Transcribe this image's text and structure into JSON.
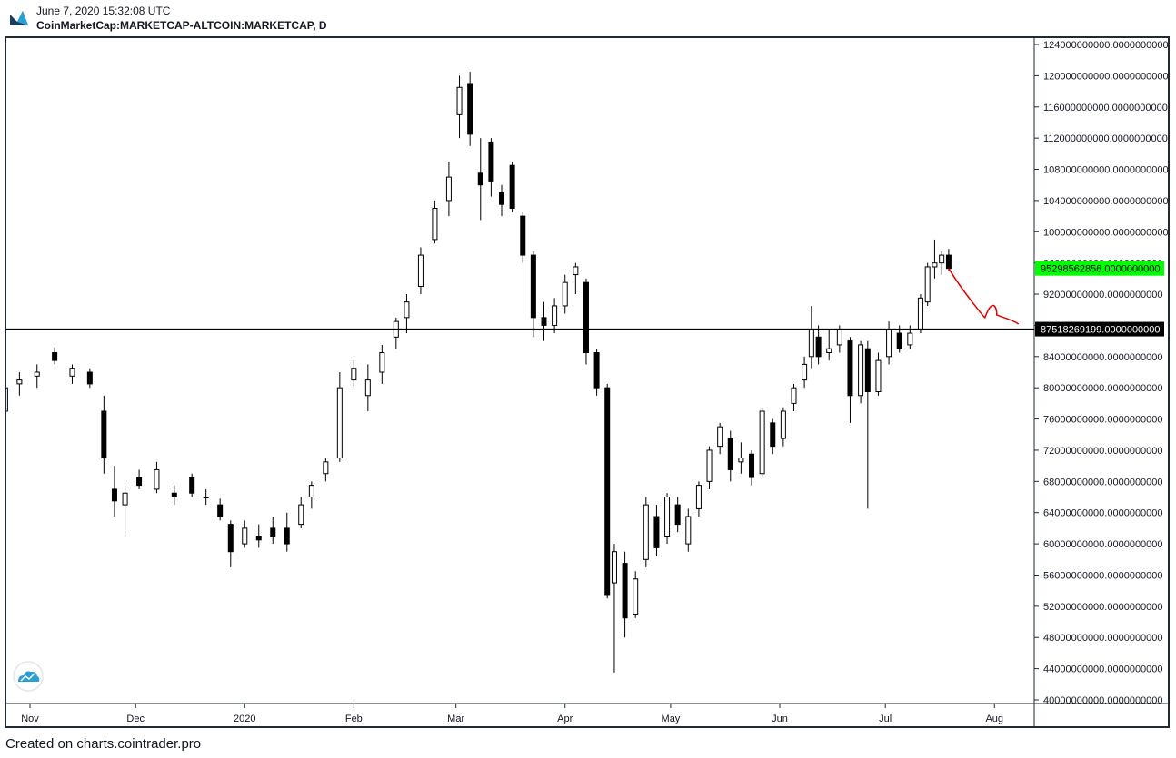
{
  "header": {
    "datetime": "June 7, 2020 15:32:08 UTC",
    "symbol": "CoinMarketCap:MARKETCAP-ALTCOIN:MARKETCAP, D"
  },
  "footer": {
    "text": "Created on charts.cointrader.pro"
  },
  "logo": {
    "icon": "tradingview-logo-icon"
  },
  "watermark": {
    "icon": "cloud-chart-icon"
  },
  "colors": {
    "candles": "#000000",
    "current_price_bg": "#00ff00",
    "level_label_bg": "#000000",
    "annotation": "#e00000",
    "axis_text": "#131722"
  },
  "chart_data": {
    "type": "candlestick",
    "interval": "D",
    "y_ticks": [
      "124000000000.0000000000",
      "120000000000.0000000000",
      "116000000000.0000000000",
      "112000000000.0000000000",
      "108000000000.0000000000",
      "104000000000.0000000000",
      "100000000000.0000000000",
      "96000000000.0000000000",
      "92000000000.0000000000",
      "88000000000.0000000000",
      "84000000000.0000000000",
      "80000000000.0000000000",
      "76000000000.0000000000",
      "72000000000.0000000000",
      "68000000000.0000000000",
      "64000000000.0000000000",
      "60000000000.0000000000",
      "56000000000.0000000000",
      "52000000000.0000000000",
      "48000000000.0000000000",
      "44000000000.0000000000",
      "40000000000.0000000000"
    ],
    "ylim": [
      40000000000,
      125000000000
    ],
    "x_ticks": [
      "Nov",
      "Dec",
      "2020",
      "Feb",
      "Mar",
      "Apr",
      "May",
      "Jun",
      "Jul",
      "Aug"
    ],
    "x_start": "2019-10-25",
    "x_end": "2020-08-31",
    "current_price": {
      "value": 95298562856,
      "label": "95298562856.0000000000"
    },
    "horizontal_level": {
      "value": 87518269199,
      "label": "87518269199.0000000000"
    },
    "candles": [
      {
        "t": "2019-10-25",
        "o": 77000000000,
        "h": 82000000000,
        "l": 76000000000,
        "c": 80000000000
      },
      {
        "t": "2019-10-29",
        "o": 80500000000,
        "h": 82000000000,
        "l": 79000000000,
        "c": 81000000000
      },
      {
        "t": "2019-11-03",
        "o": 81500000000,
        "h": 83000000000,
        "l": 80000000000,
        "c": 82000000000
      },
      {
        "t": "2019-11-08",
        "o": 84500000000,
        "h": 85200000000,
        "l": 83000000000,
        "c": 83500000000
      },
      {
        "t": "2019-11-13",
        "o": 81500000000,
        "h": 83000000000,
        "l": 80500000000,
        "c": 82500000000
      },
      {
        "t": "2019-11-18",
        "o": 82000000000,
        "h": 82500000000,
        "l": 80000000000,
        "c": 80500000000
      },
      {
        "t": "2019-11-22",
        "o": 77000000000,
        "h": 79000000000,
        "l": 69000000000,
        "c": 71000000000
      },
      {
        "t": "2019-11-25",
        "o": 67000000000,
        "h": 70000000000,
        "l": 63500000000,
        "c": 65500000000
      },
      {
        "t": "2019-11-28",
        "o": 65000000000,
        "h": 67500000000,
        "l": 61000000000,
        "c": 66500000000
      },
      {
        "t": "2019-12-02",
        "o": 68500000000,
        "h": 69500000000,
        "l": 67000000000,
        "c": 67500000000
      },
      {
        "t": "2019-12-07",
        "o": 67000000000,
        "h": 70500000000,
        "l": 66500000000,
        "c": 69500000000
      },
      {
        "t": "2019-12-12",
        "o": 66500000000,
        "h": 67500000000,
        "l": 65000000000,
        "c": 66000000000
      },
      {
        "t": "2019-12-17",
        "o": 68500000000,
        "h": 69000000000,
        "l": 66000000000,
        "c": 66500000000
      },
      {
        "t": "2019-12-21",
        "o": 66000000000,
        "h": 67000000000,
        "l": 65000000000,
        "c": 66000000000
      },
      {
        "t": "2019-12-25",
        "o": 65000000000,
        "h": 65800000000,
        "l": 63000000000,
        "c": 63500000000
      },
      {
        "t": "2019-12-28",
        "o": 62500000000,
        "h": 63000000000,
        "l": 57000000000,
        "c": 59000000000
      },
      {
        "t": "2020-01-01",
        "o": 60000000000,
        "h": 63000000000,
        "l": 59500000000,
        "c": 62000000000
      },
      {
        "t": "2020-01-05",
        "o": 61000000000,
        "h": 62500000000,
        "l": 59500000000,
        "c": 60500000000
      },
      {
        "t": "2020-01-09",
        "o": 62000000000,
        "h": 63500000000,
        "l": 60000000000,
        "c": 61000000000
      },
      {
        "t": "2020-01-13",
        "o": 62000000000,
        "h": 64000000000,
        "l": 59000000000,
        "c": 60000000000
      },
      {
        "t": "2020-01-17",
        "o": 62500000000,
        "h": 66000000000,
        "l": 62000000000,
        "c": 65000000000
      },
      {
        "t": "2020-01-20",
        "o": 66000000000,
        "h": 68000000000,
        "l": 64500000000,
        "c": 67500000000
      },
      {
        "t": "2020-01-24",
        "o": 69000000000,
        "h": 71000000000,
        "l": 68000000000,
        "c": 70500000000
      },
      {
        "t": "2020-01-28",
        "o": 71000000000,
        "h": 82000000000,
        "l": 70500000000,
        "c": 80000000000
      },
      {
        "t": "2020-02-01",
        "o": 81000000000,
        "h": 83500000000,
        "l": 80000000000,
        "c": 82500000000
      },
      {
        "t": "2020-02-05",
        "o": 79000000000,
        "h": 83000000000,
        "l": 77000000000,
        "c": 81000000000
      },
      {
        "t": "2020-02-09",
        "o": 82000000000,
        "h": 85500000000,
        "l": 80500000000,
        "c": 84500000000
      },
      {
        "t": "2020-02-13",
        "o": 86500000000,
        "h": 89000000000,
        "l": 85000000000,
        "c": 88500000000
      },
      {
        "t": "2020-02-16",
        "o": 89000000000,
        "h": 92000000000,
        "l": 87000000000,
        "c": 91000000000
      },
      {
        "t": "2020-02-20",
        "o": 93000000000,
        "h": 98000000000,
        "l": 92000000000,
        "c": 97000000000
      },
      {
        "t": "2020-02-24",
        "o": 99000000000,
        "h": 104000000000,
        "l": 98500000000,
        "c": 103000000000
      },
      {
        "t": "2020-02-28",
        "o": 104000000000,
        "h": 109000000000,
        "l": 102000000000,
        "c": 107000000000
      },
      {
        "t": "2020-03-02",
        "o": 115000000000,
        "h": 120000000000,
        "l": 112000000000,
        "c": 118500000000
      },
      {
        "t": "2020-03-05",
        "o": 119000000000,
        "h": 120500000000,
        "l": 111000000000,
        "c": 112500000000
      },
      {
        "t": "2020-03-08",
        "o": 107500000000,
        "h": 112000000000,
        "l": 101500000000,
        "c": 106000000000
      },
      {
        "t": "2020-03-11",
        "o": 111500000000,
        "h": 112000000000,
        "l": 104500000000,
        "c": 106500000000
      },
      {
        "t": "2020-03-14",
        "o": 105000000000,
        "h": 106000000000,
        "l": 102000000000,
        "c": 103500000000
      },
      {
        "t": "2020-03-17",
        "o": 108500000000,
        "h": 109000000000,
        "l": 102500000000,
        "c": 103000000000
      },
      {
        "t": "2020-03-20",
        "o": 102000000000,
        "h": 102500000000,
        "l": 96000000000,
        "c": 97000000000
      },
      {
        "t": "2020-03-23",
        "o": 97000000000,
        "h": 97500000000,
        "l": 86500000000,
        "c": 89000000000
      },
      {
        "t": "2020-03-26",
        "o": 89000000000,
        "h": 91000000000,
        "l": 86000000000,
        "c": 88000000000
      },
      {
        "t": "2020-03-29",
        "o": 88000000000,
        "h": 91500000000,
        "l": 87000000000,
        "c": 90500000000
      },
      {
        "t": "2020-04-01",
        "o": 90500000000,
        "h": 94500000000,
        "l": 89500000000,
        "c": 93500000000
      },
      {
        "t": "2020-04-04",
        "o": 94500000000,
        "h": 96000000000,
        "l": 92000000000,
        "c": 95500000000
      },
      {
        "t": "2020-04-07",
        "o": 93500000000,
        "h": 94000000000,
        "l": 83000000000,
        "c": 84500000000
      },
      {
        "t": "2020-04-10",
        "o": 84500000000,
        "h": 85000000000,
        "l": 79000000000,
        "c": 80000000000
      },
      {
        "t": "2020-04-13",
        "o": 80000000000,
        "h": 80500000000,
        "l": 53000000000,
        "c": 53500000000
      },
      {
        "t": "2020-04-15",
        "o": 55000000000,
        "h": 60000000000,
        "l": 43500000000,
        "c": 59000000000
      },
      {
        "t": "2020-04-18",
        "o": 57500000000,
        "h": 59000000000,
        "l": 48000000000,
        "c": 50500000000
      },
      {
        "t": "2020-04-21",
        "o": 51000000000,
        "h": 56500000000,
        "l": 50500000000,
        "c": 55500000000
      },
      {
        "t": "2020-04-24",
        "o": 58000000000,
        "h": 66000000000,
        "l": 57000000000,
        "c": 65000000000
      },
      {
        "t": "2020-04-27",
        "o": 63500000000,
        "h": 65000000000,
        "l": 58500000000,
        "c": 59500000000
      },
      {
        "t": "2020-04-30",
        "o": 61000000000,
        "h": 66500000000,
        "l": 60000000000,
        "c": 66000000000
      },
      {
        "t": "2020-05-03",
        "o": 65000000000,
        "h": 66000000000,
        "l": 61500000000,
        "c": 62500000000
      },
      {
        "t": "2020-05-06",
        "o": 60000000000,
        "h": 64500000000,
        "l": 59000000000,
        "c": 63500000000
      },
      {
        "t": "2020-05-09",
        "o": 64500000000,
        "h": 68000000000,
        "l": 63500000000,
        "c": 67500000000
      },
      {
        "t": "2020-05-12",
        "o": 68000000000,
        "h": 72500000000,
        "l": 67000000000,
        "c": 72000000000
      },
      {
        "t": "2020-05-15",
        "o": 72500000000,
        "h": 75500000000,
        "l": 71500000000,
        "c": 75000000000
      },
      {
        "t": "2020-05-18",
        "o": 73500000000,
        "h": 74500000000,
        "l": 68000000000,
        "c": 69500000000
      },
      {
        "t": "2020-05-21",
        "o": 70500000000,
        "h": 73000000000,
        "l": 69000000000,
        "c": 71000000000
      },
      {
        "t": "2020-05-24",
        "o": 71500000000,
        "h": 72000000000,
        "l": 67500000000,
        "c": 68500000000
      },
      {
        "t": "2020-05-27",
        "o": 69000000000,
        "h": 77500000000,
        "l": 68500000000,
        "c": 77000000000
      },
      {
        "t": "2020-05-30",
        "o": 75500000000,
        "h": 76000000000,
        "l": 71500000000,
        "c": 72500000000
      },
      {
        "t": "2020-06-02",
        "o": 73500000000,
        "h": 77500000000,
        "l": 72500000000,
        "c": 77000000000
      },
      {
        "t": "2020-06-05",
        "o": 78000000000,
        "h": 80500000000,
        "l": 77000000000,
        "c": 80000000000
      },
      {
        "t": "2020-06-08",
        "o": 81000000000,
        "h": 84000000000,
        "l": 80000000000,
        "c": 83000000000
      },
      {
        "t": "2020-06-10",
        "o": 84000000000,
        "h": 90500000000,
        "l": 82500000000,
        "c": 87500000000
      },
      {
        "t": "2020-06-12",
        "o": 86500000000,
        "h": 88000000000,
        "l": 83000000000,
        "c": 84000000000
      },
      {
        "t": "2020-06-15",
        "o": 84500000000,
        "h": 87500000000,
        "l": 83500000000,
        "c": 85000000000
      },
      {
        "t": "2020-06-18",
        "o": 85500000000,
        "h": 88000000000,
        "l": 84500000000,
        "c": 87500000000
      },
      {
        "t": "2020-06-21",
        "o": 86000000000,
        "h": 86500000000,
        "l": 75500000000,
        "c": 79000000000
      },
      {
        "t": "2020-06-24",
        "o": 79000000000,
        "h": 86000000000,
        "l": 78000000000,
        "c": 85500000000
      },
      {
        "t": "2020-06-26",
        "o": 85000000000,
        "h": 86000000000,
        "l": 64500000000,
        "c": 79500000000
      },
      {
        "t": "2020-06-29",
        "o": 79500000000,
        "h": 84500000000,
        "l": 79000000000,
        "c": 83500000000
      },
      {
        "t": "2020-07-02",
        "o": 84000000000,
        "h": 88500000000,
        "l": 83000000000,
        "c": 87500000000
      },
      {
        "t": "2020-07-05",
        "o": 87000000000,
        "h": 88000000000,
        "l": 84500000000,
        "c": 85000000000
      },
      {
        "t": "2020-07-08",
        "o": 85500000000,
        "h": 88000000000,
        "l": 85000000000,
        "c": 87000000000
      },
      {
        "t": "2020-07-11",
        "o": 87500000000,
        "h": 92000000000,
        "l": 87000000000,
        "c": 91500000000
      },
      {
        "t": "2020-07-13",
        "o": 91000000000,
        "h": 96000000000,
        "l": 90500000000,
        "c": 95500000000
      },
      {
        "t": "2020-07-15",
        "o": 95500000000,
        "h": 99000000000,
        "l": 94000000000,
        "c": 96000000000
      },
      {
        "t": "2020-07-17",
        "o": 96000000000,
        "h": 97500000000,
        "l": 94500000000,
        "c": 97000000000
      },
      {
        "t": "2020-07-19",
        "o": 97000000000,
        "h": 97800000000,
        "l": 95000000000,
        "c": 95300000000
      }
    ],
    "annotation": {
      "type": "freehand-arrow",
      "color": "#e00000"
    }
  }
}
